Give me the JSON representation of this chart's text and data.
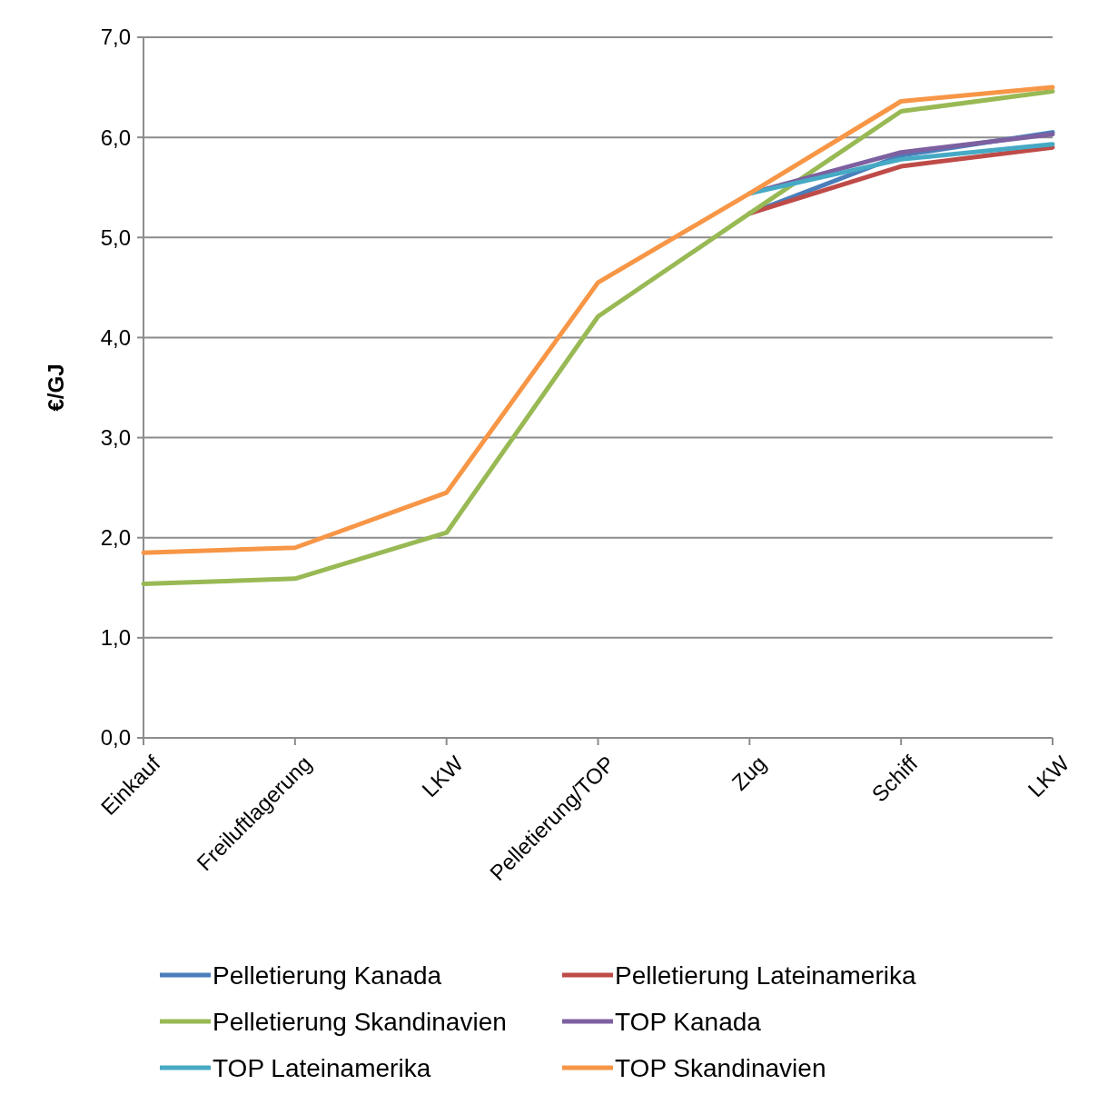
{
  "chart_data": {
    "type": "line",
    "ylabel": "€/GJ",
    "categories": [
      "Einkauf",
      "Freiluftlagerung",
      "LKW",
      "Pelletierung/TOP",
      "Zug",
      "Schiff",
      "LKW"
    ],
    "series": [
      {
        "name": "Pelletierung Kanada",
        "color": "#4a7ebb",
        "values": [
          null,
          null,
          null,
          null,
          5.24,
          5.82,
          6.05
        ]
      },
      {
        "name": "Pelletierung Lateinamerika",
        "color": "#be4b48",
        "values": [
          null,
          null,
          null,
          null,
          5.24,
          5.71,
          5.9
        ]
      },
      {
        "name": "Pelletierung Skandinavien",
        "color": "#98b954",
        "values": [
          1.54,
          1.59,
          2.05,
          4.21,
          5.24,
          6.26,
          6.46
        ]
      },
      {
        "name": "TOP Kanada",
        "color": "#7d60a0",
        "values": [
          null,
          null,
          null,
          null,
          5.44,
          5.85,
          6.03
        ]
      },
      {
        "name": "TOP Lateinamerika",
        "color": "#46aac5",
        "values": [
          null,
          null,
          null,
          null,
          5.44,
          5.78,
          5.93
        ]
      },
      {
        "name": "TOP Skandinavien",
        "color": "#f79646",
        "values": [
          1.85,
          1.9,
          2.45,
          4.55,
          5.44,
          6.36,
          6.5
        ]
      }
    ],
    "ylim": [
      0,
      7
    ],
    "yticks": [
      {
        "value": 0,
        "label": "0,0"
      },
      {
        "value": 1,
        "label": "1,0"
      },
      {
        "value": 2,
        "label": "2,0"
      },
      {
        "value": 3,
        "label": "3,0"
      },
      {
        "value": 4,
        "label": "4,0"
      },
      {
        "value": 5,
        "label": "5,0"
      },
      {
        "value": 6,
        "label": "6,0"
      },
      {
        "value": 7,
        "label": "7,0"
      }
    ],
    "grid": "y",
    "legend": "bottom",
    "marker": "none",
    "line_style": "solid"
  }
}
